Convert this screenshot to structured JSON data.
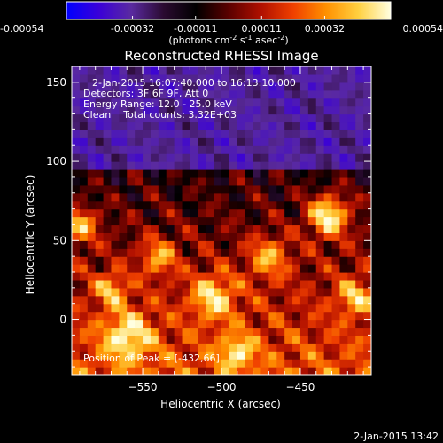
{
  "colorbar": {
    "tick_labels": [
      "-0.00054",
      "-0.00032",
      "-0.00011",
      "0.00011",
      "0.00032",
      "0.00054"
    ],
    "unit_prefix": "(photons cm",
    "unit_exp1": "-2",
    "unit_mid": " s",
    "unit_exp2": "-1",
    "unit_mid2": " asec",
    "unit_exp3": "-2",
    "unit_suffix": ")",
    "colors": [
      "#0000ff",
      "#3a00d8",
      "#5a2aa0",
      "#2a0a30",
      "#000000",
      "#5a0000",
      "#b01000",
      "#f04000",
      "#ff9000",
      "#ffd040",
      "#ffffe0"
    ]
  },
  "plot": {
    "title": "Reconstructed RHESSI Image",
    "annotations": [
      "2-Jan-2015 16:07:40.000 to 16:13:10.000",
      "Detectors: 3F 6F 9F, Att 0",
      "Energy Range: 12.0 - 25.0 keV",
      "Clean    Total counts: 3.32E+03"
    ],
    "peak_label": "Position of Peak = [-432,66]",
    "footer_timestamp": "2-Jan-2015 13:42"
  },
  "chart_data": {
    "type": "heatmap",
    "title": "Reconstructed RHESSI Image",
    "xlabel": "Heliocentric X (arcsec)",
    "ylabel": "Heliocentric Y (arcsec)",
    "xlim": [
      -595,
      -405
    ],
    "ylim": [
      -35,
      160
    ],
    "x_ticks": [
      -550,
      -500,
      -450
    ],
    "y_ticks": [
      0,
      50,
      100,
      150
    ],
    "x_tick_labels": [
      "−550",
      "−500",
      "−450"
    ],
    "y_tick_labels": [
      "0",
      "50",
      "100",
      "150"
    ],
    "colorbar_range": [
      -0.00054,
      0.00054
    ],
    "peak_position": [
      -432,
      66
    ],
    "grid": false
  }
}
